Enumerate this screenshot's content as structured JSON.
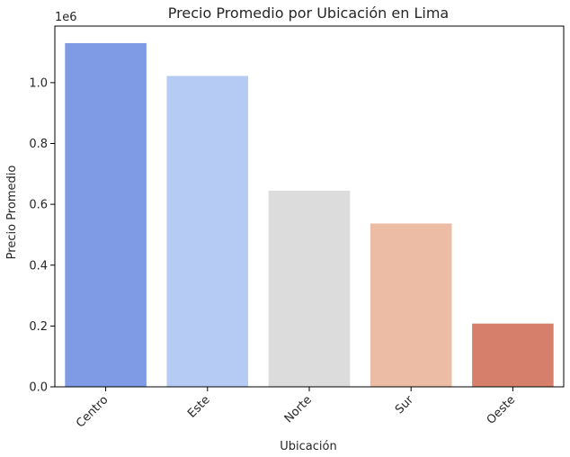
{
  "chart_data": {
    "type": "bar",
    "title": "Precio Promedio por Ubicación en Lima",
    "xlabel": "Ubicación",
    "ylabel": "Precio Promedio",
    "offset_label": "1e6",
    "categories": [
      "Centro",
      "Este",
      "Norte",
      "Sur",
      "Oeste"
    ],
    "values": [
      1130000,
      1022000,
      645000,
      537000,
      208000
    ],
    "colors": [
      "#7f9be5",
      "#b5cbf3",
      "#dcdcdc",
      "#edbca5",
      "#d6806b"
    ],
    "yticks": [
      0.0,
      0.2,
      0.4,
      0.6,
      0.8,
      1.0
    ],
    "ytick_labels": [
      "0.0",
      "0.2",
      "0.4",
      "0.6",
      "0.8",
      "1.0"
    ],
    "ylim": [
      0,
      1186000
    ],
    "grid": false,
    "legend": "none"
  }
}
